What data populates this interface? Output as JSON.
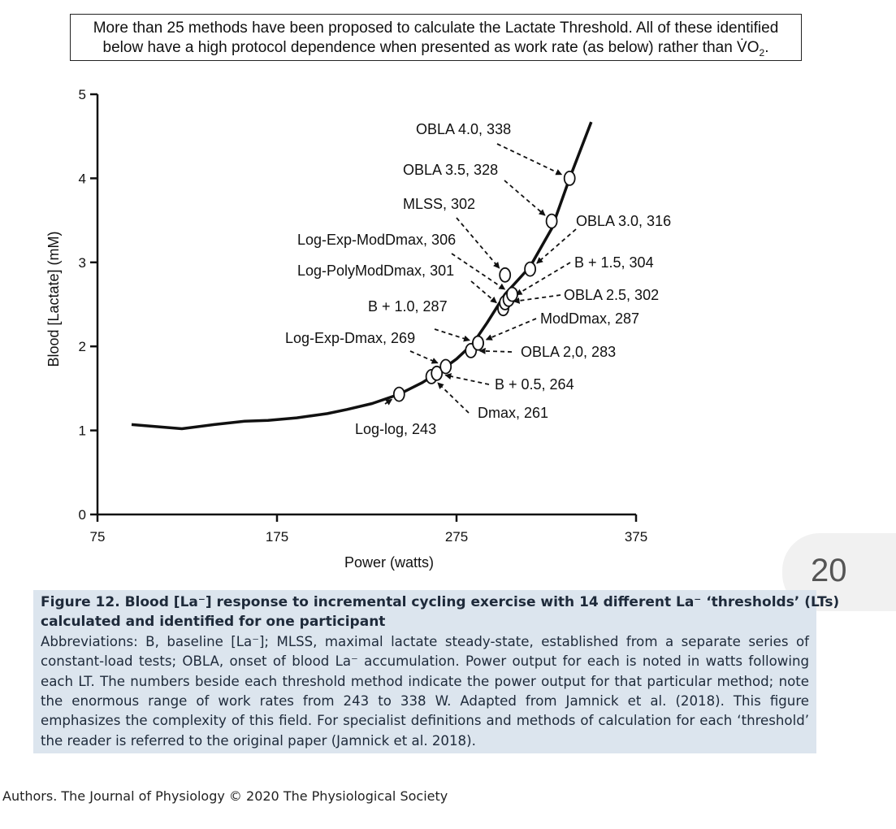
{
  "note": {
    "line1": "More than 25 methods have been proposed to calculate the Lactate Threshold. All of these identified",
    "line2_before": "below have a high protocol dependence when presented as work rate (as below) rather than V̇O",
    "line2_sub": "2",
    "line2_after": "."
  },
  "chart_data": {
    "type": "line",
    "xlabel": "Power (watts)",
    "ylabel": "Blood [Lactate] (mM)",
    "xlim": [
      75,
      375
    ],
    "ylim": [
      0,
      5
    ],
    "x_ticks": [
      "75",
      "175",
      "275",
      "375"
    ],
    "y_ticks": [
      "0",
      "1",
      "2",
      "3",
      "4",
      "5"
    ],
    "grid": false,
    "curve": {
      "x": [
        94,
        122,
        140,
        157,
        170,
        186,
        203,
        214,
        228,
        243,
        256,
        264,
        275,
        284,
        292,
        302,
        316,
        328,
        338,
        350
      ],
      "y": [
        1.07,
        1.02,
        1.07,
        1.11,
        1.12,
        1.15,
        1.2,
        1.25,
        1.32,
        1.43,
        1.57,
        1.68,
        1.85,
        2.03,
        2.28,
        2.62,
        2.95,
        3.4,
        4.0,
        4.67
      ]
    },
    "thresholds": [
      {
        "label": "Log-log, 243",
        "x": 243,
        "y": 1.43
      },
      {
        "label": "Dmax, 261",
        "x": 261,
        "y": 1.64
      },
      {
        "label": "B + 0.5, 264",
        "x": 264,
        "y": 1.68
      },
      {
        "label": "Log-Exp-Dmax, 269",
        "x": 269,
        "y": 1.76
      },
      {
        "label": "OBLA 2,0, 283",
        "x": 283,
        "y": 1.95
      },
      {
        "label": "B + 1.0, 287",
        "x": 287,
        "y": 2.04
      },
      {
        "label": "ModDmax, 287",
        "x": 287,
        "y": 2.04
      },
      {
        "label": "Log-PolyModDmax, 301",
        "x": 301,
        "y": 2.45
      },
      {
        "label": "MLSS, 302",
        "x": 302,
        "y": 2.85
      },
      {
        "label": "OBLA 2.5, 302",
        "x": 302,
        "y": 2.52
      },
      {
        "label": "B + 1.5, 304",
        "x": 304,
        "y": 2.56
      },
      {
        "label": "Log-Exp-ModDmax, 306",
        "x": 306,
        "y": 2.62
      },
      {
        "label": "OBLA 3.0, 316",
        "x": 316,
        "y": 2.92
      },
      {
        "label": "OBLA 3.5, 328",
        "x": 328,
        "y": 3.49
      },
      {
        "label": "OBLA 4.0, 338",
        "x": 338,
        "y": 4.0
      }
    ]
  },
  "caption": {
    "title_line1": "Figure 12.  Blood [La⁻] response to incremental cycling exercise with 14 different La⁻ ‘thresholds’ (LTs)",
    "title_line2": "calculated and identified for one participant",
    "body": "Abbreviations: B, baseline [La⁻]; MLSS, maximal lactate steady-state, established from a separate series of constant-load tests; OBLA, onset of blood La⁻ accumulation. Power output for each is noted in watts following each LT. The numbers beside each threshold method indicate the power output for that particular method; note the enormous range of work rates from 243 to 338 W. Adapted from Jamnick et al. (2018). This figure emphasizes the complexity of this field. For specialist definitions and methods of calculation for each ‘threshold’ the reader is referred to the original paper (Jamnick et al. 2018)."
  },
  "page_number": "20",
  "footer": "Authors. The Journal of Physiology © 2020 The Physiological Society"
}
